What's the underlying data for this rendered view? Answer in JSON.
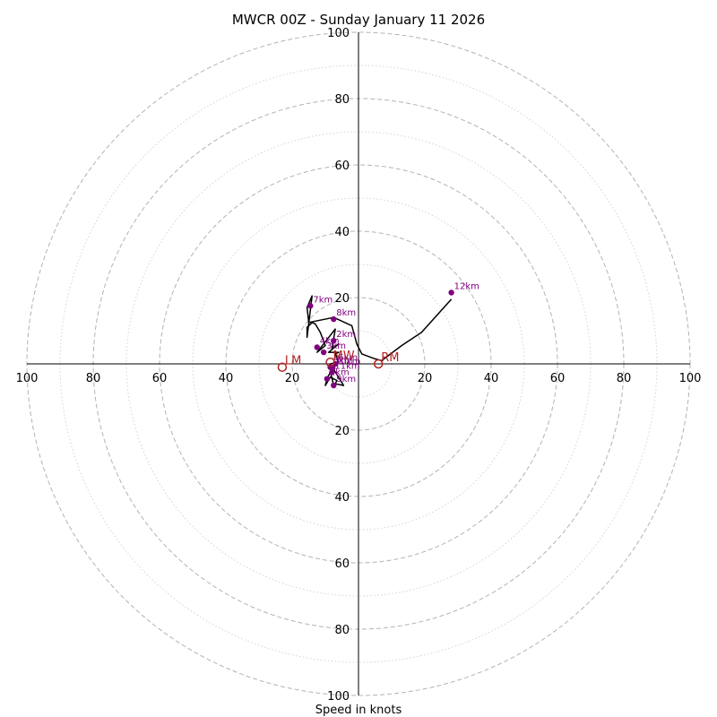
{
  "chart_data": {
    "type": "hodograph",
    "title": "MWCR 00Z - Sunday January 11 2026",
    "xlabel": "Speed in knots",
    "units": "knots",
    "max_speed": 100,
    "major_rings": [
      20,
      40,
      60,
      80,
      100
    ],
    "minor_rings": [
      10,
      30,
      50,
      70,
      90
    ],
    "tick_labels": [
      "20",
      "40",
      "60",
      "80",
      "100"
    ],
    "colors": {
      "trace": "#000000",
      "height_points": "#800080",
      "storm_motion": "#b22222"
    },
    "trace": {
      "u": [
        -7.6,
        -8.5,
        -9.5,
        -10,
        -8.5,
        -6.5,
        -7,
        -4.5,
        -8.5,
        -6,
        -7,
        -6,
        -9,
        -6,
        -8,
        -7,
        -12.5,
        -10,
        -11.5,
        -13,
        -14,
        -15.5,
        -15.5,
        -14,
        -15.5,
        -15,
        -7.5,
        -2,
        -0.5,
        1,
        5,
        7,
        13,
        19,
        28
      ],
      "v": [
        -6.0,
        -2.5,
        -4.5,
        -6.5,
        -4,
        -5,
        -6,
        -6.5,
        0,
        0.5,
        3,
        3.5,
        3.5,
        6,
        4.5,
        10.5,
        3.5,
        5.5,
        9.5,
        12,
        12.5,
        11,
        8,
        20.5,
        17,
        12.5,
        14,
        11.5,
        6,
        3,
        1.5,
        1,
        5.5,
        9.5,
        19.5
      ]
    },
    "height_points": [
      {
        "label": "1km",
        "u": -9.5,
        "v": -4.5
      },
      {
        "label": "2km",
        "u": -7.5,
        "v": 7
      },
      {
        "label": "3km",
        "u": -10.5,
        "v": 3.5
      },
      {
        "label": "4km",
        "u": -12.5,
        "v": 5
      },
      {
        "label": "5km",
        "u": -8.5,
        "v": -1
      },
      {
        "label": "6km",
        "u": -7,
        "v": 0
      },
      {
        "label": "7km",
        "u": -14.5,
        "v": 17.5
      },
      {
        "label": "8km",
        "u": -7.5,
        "v": 13.5
      },
      {
        "label": "9km",
        "u": -7.5,
        "v": -6.5
      },
      {
        "label": "10km",
        "u": -7.8,
        "v": -1.2
      },
      {
        "label": "11km",
        "u": -8,
        "v": -2.5
      },
      {
        "label": "12km",
        "u": 28,
        "v": 21.5
      }
    ],
    "storm_motion": [
      {
        "label": "RM",
        "u": 6,
        "v": 0
      },
      {
        "label": "LM",
        "u": -23,
        "v": -1
      },
      {
        "label": "MW",
        "u": -8.5,
        "v": 0.5
      }
    ]
  }
}
